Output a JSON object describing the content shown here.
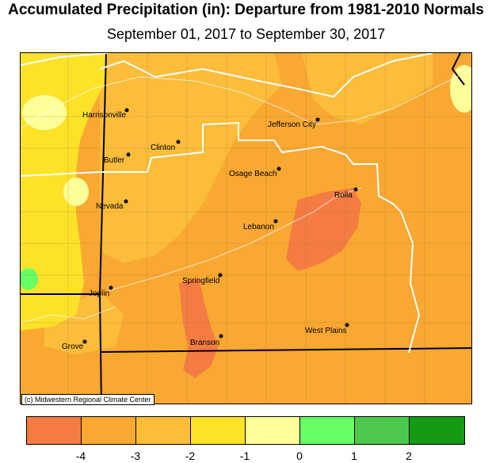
{
  "title": "Accumulated Precipitation (in): Departure from 1981-2010 Normals",
  "subtitle": "September 01, 2017 to September 30, 2017",
  "credit": "(c) Midwestern Regional Climate Center",
  "legend": {
    "bins": [
      {
        "color": "#f47c43"
      },
      {
        "color": "#f9a832"
      },
      {
        "color": "#fbbd3a"
      },
      {
        "color": "#fde22a"
      },
      {
        "color": "#ffff99"
      },
      {
        "color": "#66ff66"
      },
      {
        "color": "#4cc94c"
      },
      {
        "color": "#149a14"
      }
    ],
    "tick_labels": [
      "-4",
      "-3",
      "-2",
      "-1",
      "0",
      "1",
      "2"
    ]
  },
  "cities": [
    {
      "name": "Harrisonville"
    },
    {
      "name": "Jefferson City"
    },
    {
      "name": "Clinton"
    },
    {
      "name": "Butler"
    },
    {
      "name": "Osage Beach"
    },
    {
      "name": "Rolla"
    },
    {
      "name": "Nevada"
    },
    {
      "name": "Lebanon"
    },
    {
      "name": "Springfield"
    },
    {
      "name": "Joplin"
    },
    {
      "name": "West Plains"
    },
    {
      "name": "Branson"
    },
    {
      "name": "Grove"
    }
  ]
}
